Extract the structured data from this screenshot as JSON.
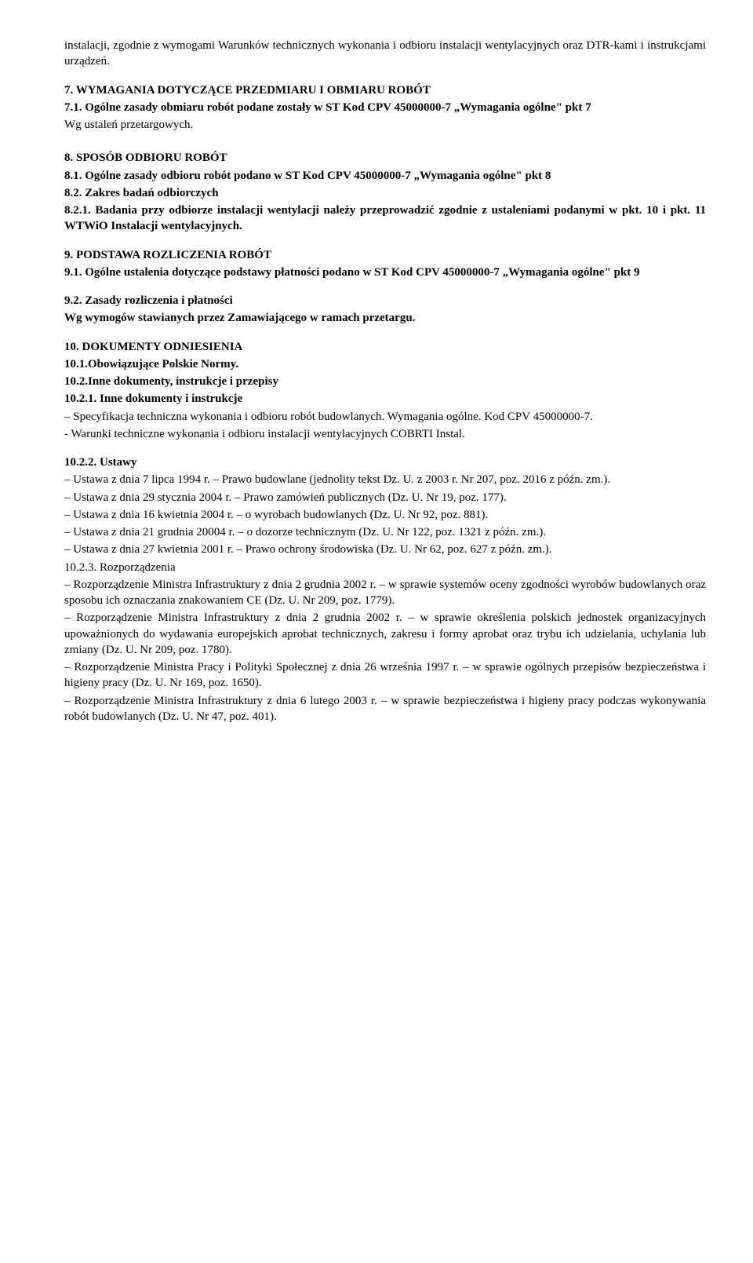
{
  "p_intro": "instalacji, zgodnie z wymogami Warunków technicznych wykonania i odbioru instalacji wentylacyjnych oraz DTR-kami i instrukcjami urządzeń.",
  "s7": {
    "title": "7. WYMAGANIA DOTYCZĄCE PRZEDMIARU I OBMIARU ROBÓT",
    "s7_1_title": "7.1. Ogólne zasady obmiaru robót podane zostały w ST Kod CPV 45000000-7 „Wymagania ogólne\" pkt 7",
    "s7_1_body": "Wg ustaleń przetargowych."
  },
  "s8": {
    "title": "8. SPOSÓB ODBIORU ROBÓT",
    "s8_1_title": "8.1. Ogólne zasady odbioru robót podano w ST Kod CPV 45000000-7 „Wymagania ogólne\" pkt 8",
    "s8_2_title": "8.2. Zakres badań odbiorczych",
    "s8_2_1": "8.2.1. Badania przy odbiorze instalacji wentylacji należy przeprowadzić zgodnie z ustaleniami podanymi w pkt. 10 i pkt. 11 WTWiO Instalacji wentylacyjnych."
  },
  "s9": {
    "title": "9. PODSTAWA ROZLICZENIA ROBÓT",
    "s9_1": "9.1. Ogólne ustalenia dotyczące podstawy płatności podano w ST Kod CPV 45000000-7 „Wymagania ogólne\" pkt 9",
    "s9_2_title": "9.2. Zasady rozliczenia i płatności",
    "s9_2_body": "Wg wymogów stawianych przez Zamawiającego w ramach przetargu."
  },
  "s10": {
    "title": "10. DOKUMENTY ODNIESIENIA",
    "s10_1": "10.1.Obowiązujące Polskie Normy.",
    "s10_2": "10.2.Inne dokumenty, instrukcje i przepisy",
    "s10_2_1_title": "10.2.1. Inne dokumenty i instrukcje",
    "s10_2_1_a": "– Specyfikacja techniczna wykonania i odbioru robót budowlanych. Wymagania ogólne. Kod CPV 45000000-7.",
    "s10_2_1_b": "- Warunki techniczne wykonania i odbioru instalacji wentylacyjnych COBRTI Instal.",
    "s10_2_2_title": "10.2.2. Ustawy",
    "u1": "– Ustawa z dnia 7 lipca 1994 r. – Prawo budowlane (jednolity tekst Dz. U. z 2003 r. Nr 207, poz. 2016 z późn. zm.).",
    "u2": "– Ustawa z dnia 29 stycznia 2004 r. – Prawo zamówień publicznych (Dz. U. Nr 19, poz. 177).",
    "u3": "– Ustawa z dnia 16 kwietnia 2004 r. – o wyrobach budowlanych (Dz. U. Nr 92, poz. 881).",
    "u4": "– Ustawa z dnia 21 grudnia 20004 r. – o dozorze technicznym (Dz. U. Nr 122, poz. 1321 z późn. zm.).",
    "u5": "– Ustawa z dnia 27 kwietnia 2001 r. – Prawo ochrony środowiska (Dz. U. Nr 62,  poz. 627 z późn. zm.).",
    "s10_2_3_title": "10.2.3. Rozporządzenia",
    "r1": "– Rozporządzenie Ministra Infrastruktury z dnia 2 grudnia 2002 r. – w sprawie systemów oceny zgodności wyrobów budowlanych  oraz sposobu  ich  oznaczania  znakowaniem CE (Dz. U. Nr 209, poz. 1779).",
    "r2": "– Rozporządzenie Ministra Infrastruktury z dnia 2 grudnia 2002 r. – w sprawie określenia polskich jednostek organizacyjnych upoważnionych do wydawania europejskich aprobat technicznych, zakresu i formy aprobat oraz trybu ich udzielania, uchylania lub zmiany (Dz. U. Nr 209, poz. 1780).",
    "r3": "– Rozporządzenie Ministra Pracy i Polityki Społecznej z dnia  26  września 1997  r.  –  w sprawie ogólnych przepisów bezpieczeństwa i higieny pracy (Dz.  U.  Nr  169,  poz. 1650).",
    "r4": "– Rozporządzenie  Ministra  Infrastruktury  z  dnia  6  lutego  2003  r.   –   w   sprawie bezpieczeństwa i higieny pracy podczas wykonywania robót budowlanych (Dz. U. Nr 47, poz. 401)."
  }
}
